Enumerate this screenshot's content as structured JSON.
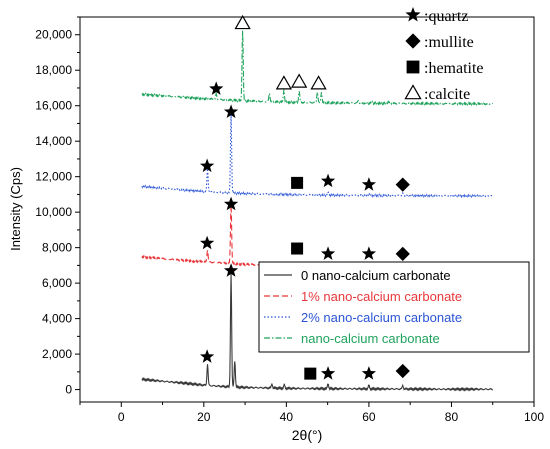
{
  "chart_data": {
    "type": "line",
    "xlabel": "2θ(°)",
    "ylabel": "Intensity (Cps)",
    "xlim": [
      -10,
      100
    ],
    "ylim": [
      -700,
      21000
    ],
    "x_ticks": [
      "0",
      "20",
      "40",
      "60",
      "80",
      "100"
    ],
    "y_ticks": [
      "0",
      "2,000",
      "4,000",
      "6,000",
      "8,000",
      "10,000",
      "12,000",
      "14,000",
      "16,000",
      "18,000",
      "20,000"
    ],
    "series": [
      {
        "name": "0 nano-calcium carbonate",
        "color": "#3a3a3a",
        "style": "solid",
        "baseline": [
          [
            5,
            580
          ],
          [
            10,
            470
          ],
          [
            15,
            370
          ],
          [
            20,
            250
          ],
          [
            25,
            170
          ],
          [
            30,
            120
          ],
          [
            40,
            70
          ],
          [
            50,
            50
          ],
          [
            60,
            40
          ],
          [
            70,
            30
          ],
          [
            80,
            20
          ],
          [
            90,
            20
          ]
        ],
        "peaks": [
          [
            20.9,
            1200
          ],
          [
            26.6,
            6400
          ],
          [
            27.5,
            1500
          ],
          [
            36.5,
            250
          ],
          [
            39.5,
            200
          ],
          [
            50.1,
            300
          ],
          [
            60.0,
            200
          ],
          [
            68.2,
            200
          ]
        ]
      },
      {
        "name": "1% nano-calcium carbonate",
        "color": "#e8383b",
        "style": "dashed",
        "baseline": [
          [
            5,
            7480
          ],
          [
            10,
            7380
          ],
          [
            15,
            7280
          ],
          [
            20,
            7200
          ],
          [
            25,
            7130
          ],
          [
            30,
            7060
          ],
          [
            40,
            6980
          ],
          [
            50,
            6950
          ],
          [
            60,
            6930
          ],
          [
            70,
            6920
          ],
          [
            80,
            6910
          ],
          [
            90,
            6900
          ]
        ],
        "peaks": [
          [
            20.9,
            700
          ],
          [
            26.6,
            3400
          ],
          [
            50.1,
            150
          ],
          [
            60.0,
            120
          ],
          [
            68.2,
            120
          ]
        ]
      },
      {
        "name": "2% nano-calcium carbonate",
        "color": "#2b55d6",
        "style": "dotted",
        "baseline": [
          [
            5,
            11450
          ],
          [
            10,
            11350
          ],
          [
            15,
            11250
          ],
          [
            20,
            11170
          ],
          [
            25,
            11100
          ],
          [
            30,
            11050
          ],
          [
            40,
            10990
          ],
          [
            50,
            10960
          ],
          [
            60,
            10940
          ],
          [
            70,
            10930
          ],
          [
            80,
            10920
          ],
          [
            90,
            10910
          ]
        ],
        "peaks": [
          [
            20.9,
            1300
          ],
          [
            26.6,
            4400
          ],
          [
            50.1,
            150
          ],
          [
            60.0,
            120
          ],
          [
            68.2,
            120
          ]
        ]
      },
      {
        "name": "nano-calcium carbonate",
        "color": "#1fa35c",
        "style": "dashdot",
        "baseline": [
          [
            5,
            16650
          ],
          [
            10,
            16560
          ],
          [
            15,
            16480
          ],
          [
            20,
            16400
          ],
          [
            25,
            16330
          ],
          [
            30,
            16270
          ],
          [
            40,
            16200
          ],
          [
            50,
            16160
          ],
          [
            60,
            16140
          ],
          [
            70,
            16120
          ],
          [
            80,
            16110
          ],
          [
            90,
            16100
          ]
        ],
        "peaks": [
          [
            23.0,
            300
          ],
          [
            29.4,
            4000
          ],
          [
            35.9,
            500
          ],
          [
            39.4,
            700
          ],
          [
            43.1,
            650
          ],
          [
            47.5,
            600
          ],
          [
            48.5,
            600
          ],
          [
            57.4,
            150
          ],
          [
            60.7,
            120
          ],
          [
            64.7,
            100
          ]
        ]
      }
    ],
    "phase_legend": [
      {
        "glyph": "★",
        "text": ":quartz"
      },
      {
        "glyph": "◆",
        "text": ":mullite"
      },
      {
        "glyph": "■",
        "text": ":hematite"
      },
      {
        "glyph": "△",
        "text": ":calcite"
      }
    ],
    "phase_markers": [
      {
        "glyph": "★",
        "x": 20.8,
        "y": 1850
      },
      {
        "glyph": "★",
        "x": 26.6,
        "y": 6700
      },
      {
        "glyph": "■",
        "x": 45.8,
        "y": 900
      },
      {
        "glyph": "★",
        "x": 50.1,
        "y": 900
      },
      {
        "glyph": "★",
        "x": 60.0,
        "y": 900
      },
      {
        "glyph": "◆",
        "x": 68.2,
        "y": 1050
      },
      {
        "glyph": "★",
        "x": 20.8,
        "y": 8250
      },
      {
        "glyph": "★",
        "x": 26.6,
        "y": 10450
      },
      {
        "glyph": "■",
        "x": 42.6,
        "y": 7950
      },
      {
        "glyph": "★",
        "x": 50.1,
        "y": 7650
      },
      {
        "glyph": "★",
        "x": 60.0,
        "y": 7650
      },
      {
        "glyph": "◆",
        "x": 68.2,
        "y": 7650
      },
      {
        "glyph": "★",
        "x": 20.8,
        "y": 12600
      },
      {
        "glyph": "★",
        "x": 26.6,
        "y": 15650
      },
      {
        "glyph": "■",
        "x": 42.6,
        "y": 11650
      },
      {
        "glyph": "★",
        "x": 50.1,
        "y": 11750
      },
      {
        "glyph": "★",
        "x": 60.0,
        "y": 11550
      },
      {
        "glyph": "◆",
        "x": 68.2,
        "y": 11550
      },
      {
        "glyph": "★",
        "x": 23.0,
        "y": 16950
      },
      {
        "glyph": "△",
        "x": 29.4,
        "y": 20650
      },
      {
        "glyph": "△",
        "x": 39.4,
        "y": 17250
      },
      {
        "glyph": "△",
        "x": 43.1,
        "y": 17350
      },
      {
        "glyph": "△",
        "x": 47.8,
        "y": 17250
      }
    ],
    "legend_position": "bottom-right",
    "grid": false
  }
}
